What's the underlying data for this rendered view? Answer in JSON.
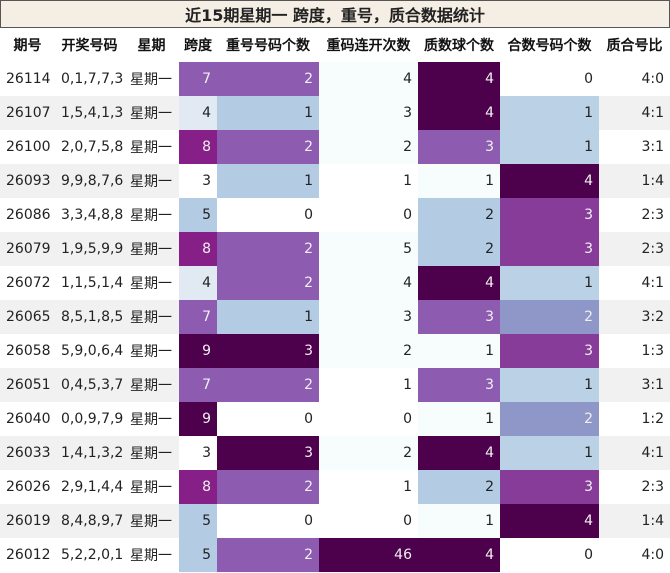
{
  "title": "近15期星期一 跨度，重号，质合数据统计",
  "headers": [
    "期号",
    "开奖号码",
    "星期",
    "跨度",
    "重号号码个数",
    "重码连开次数",
    "质数球个数",
    "合数号码个数",
    "质合号比"
  ],
  "rows": [
    [
      "26114",
      "0,1,7,7,3",
      "星期一",
      "7",
      "2",
      "4",
      "4",
      "0",
      "4:0"
    ],
    [
      "26107",
      "1,5,4,1,3",
      "星期一",
      "4",
      "1",
      "3",
      "4",
      "1",
      "4:1"
    ],
    [
      "26100",
      "2,0,7,5,8",
      "星期一",
      "8",
      "2",
      "2",
      "3",
      "1",
      "3:1"
    ],
    [
      "26093",
      "9,9,8,7,6",
      "星期一",
      "3",
      "1",
      "1",
      "1",
      "4",
      "1:4"
    ],
    [
      "26086",
      "3,3,4,8,8",
      "星期一",
      "5",
      "0",
      "0",
      "2",
      "3",
      "2:3"
    ],
    [
      "26079",
      "1,9,5,9,9",
      "星期一",
      "8",
      "2",
      "5",
      "2",
      "3",
      "2:3"
    ],
    [
      "26072",
      "1,1,5,1,4",
      "星期一",
      "4",
      "2",
      "4",
      "4",
      "1",
      "4:1"
    ],
    [
      "26065",
      "8,5,1,8,5",
      "星期一",
      "7",
      "1",
      "3",
      "3",
      "2",
      "3:2"
    ],
    [
      "26058",
      "5,9,0,6,4",
      "星期一",
      "9",
      "3",
      "2",
      "1",
      "3",
      "1:3"
    ],
    [
      "26051",
      "0,4,5,3,7",
      "星期一",
      "7",
      "2",
      "1",
      "3",
      "1",
      "3:1"
    ],
    [
      "26040",
      "0,0,9,7,9",
      "星期一",
      "9",
      "0",
      "0",
      "1",
      "2",
      "1:2"
    ],
    [
      "26033",
      "1,4,1,3,2",
      "星期一",
      "3",
      "3",
      "2",
      "4",
      "1",
      "4:1"
    ],
    [
      "26026",
      "2,9,1,4,4",
      "星期一",
      "8",
      "2",
      "1",
      "2",
      "3",
      "2:3"
    ],
    [
      "26019",
      "8,4,8,9,7",
      "星期一",
      "5",
      "0",
      "0",
      "1",
      "4",
      "1:4"
    ],
    [
      "26012",
      "5,2,2,0,1",
      "星期一",
      "5",
      "2",
      "46",
      "4",
      "0",
      "4:0"
    ]
  ],
  "cell_colors": {
    "3": {
      "3": "#ffffff",
      "4": "#e1e9f3",
      "5": "#b3cbe3",
      "7": "#8d5bb0",
      "8": "#861f87",
      "9": "#4d004b"
    },
    "4": {
      "0": "#ffffff",
      "1": "#b3cbe3",
      "2": "#8d5bb0",
      "3": "#4d004b"
    },
    "5": {
      "0": "#ffffff",
      "1": "#ffffff",
      "2": "#f7fcfd",
      "3": "#f7fcfd",
      "4": "#f7fcfd",
      "5": "#f7fcfd",
      "46": "#4d004b"
    },
    "6": {
      "1": "#f7fcfd",
      "2": "#b3cbe3",
      "3": "#8d5bb0",
      "4": "#4d004b"
    },
    "7": {
      "0": "#ffffff",
      "1": "#bad1e6",
      "2": "#8f96c8",
      "3": "#883c99",
      "4": "#4d004b"
    }
  }
}
